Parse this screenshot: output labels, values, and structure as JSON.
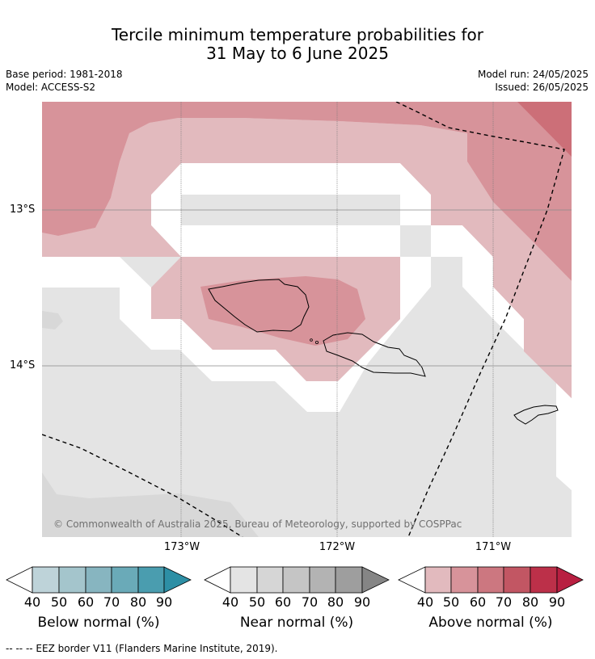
{
  "title": {
    "line1": "Tercile minimum temperature probabilities for",
    "line2": "31 May to 6 June 2025"
  },
  "meta": {
    "base_period": "Base period: 1981-2018",
    "model": "Model: ACCESS-S2",
    "model_run": "Model run: 24/05/2025",
    "issued": "Issued: 26/05/2025"
  },
  "map": {
    "longitude_labels": [
      "173°W",
      "172°W",
      "171°W"
    ],
    "latitude_labels": [
      "13°S",
      "14°S"
    ],
    "copyright": "© Commonwealth of Australia 2025, Bureau of Meteorology, supported by COSPPac",
    "colors": {
      "above_50": "#e2babe",
      "above_60": "#d7939a",
      "above_70": "#cc6f78",
      "near_40": "#e4e4e4",
      "near_50": "#d8d8d8",
      "background": "#ffffff"
    }
  },
  "colorbars": [
    {
      "title": "Below normal (%)",
      "ticks": [
        "40",
        "50",
        "60",
        "70",
        "80",
        "90"
      ],
      "colors": [
        "#bed3d9",
        "#a4c5cc",
        "#87b5c0",
        "#6aaab8",
        "#4a9daf",
        "#2d8fa5"
      ]
    },
    {
      "title": "Near normal (%)",
      "ticks": [
        "40",
        "50",
        "60",
        "70",
        "80",
        "90"
      ],
      "colors": [
        "#e4e4e4",
        "#d6d6d6",
        "#c5c5c5",
        "#b3b3b3",
        "#9e9e9e",
        "#858585"
      ]
    },
    {
      "title": "Above normal (%)",
      "ticks": [
        "40",
        "50",
        "60",
        "70",
        "80",
        "90"
      ],
      "colors": [
        "#e2babe",
        "#d7939a",
        "#cc7780",
        "#c25663",
        "#bc3049",
        "#b81f41"
      ]
    }
  ],
  "footer": "--  --  -- EEZ border V11 (Flanders Marine Institute, 2019)."
}
